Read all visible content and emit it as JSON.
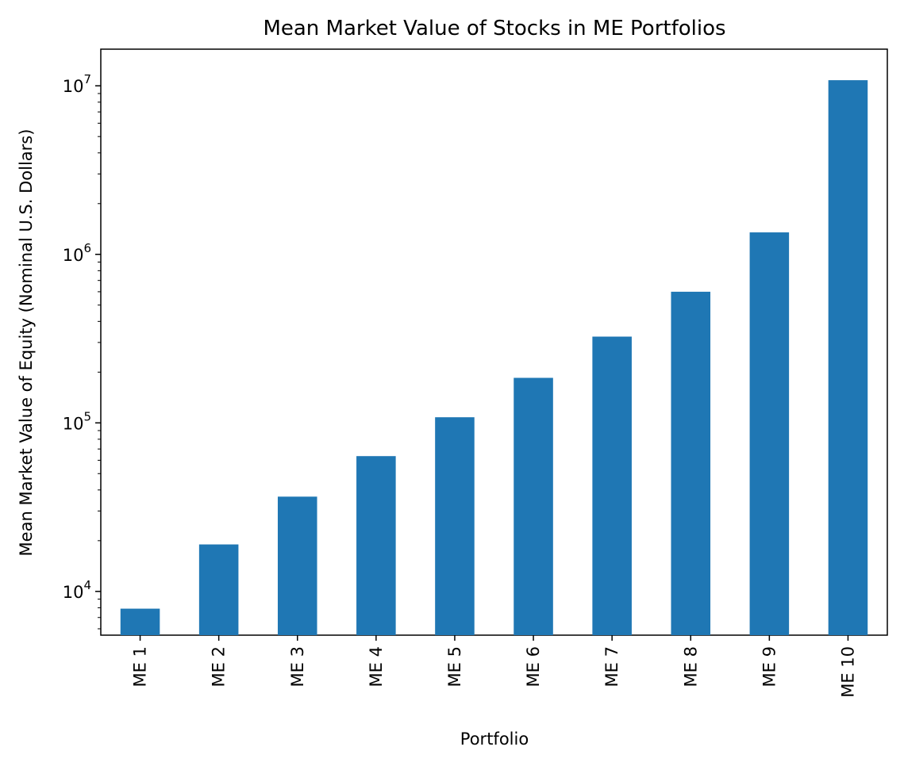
{
  "chart_data": {
    "type": "bar",
    "title": "Mean Market Value of Stocks in ME Portfolios",
    "xlabel": "Portfolio",
    "ylabel": "Mean Market Value of Equity (Nominal U.S. Dollars)",
    "yscale": "log",
    "ylim": [
      5500,
      16500000
    ],
    "yticks": [
      {
        "value": 10000,
        "base": "10",
        "exp": "4"
      },
      {
        "value": 100000,
        "base": "10",
        "exp": "5"
      },
      {
        "value": 1000000,
        "base": "10",
        "exp": "6"
      },
      {
        "value": 10000000,
        "base": "10",
        "exp": "7"
      }
    ],
    "categories": [
      "ME 1",
      "ME 2",
      "ME 3",
      "ME 4",
      "ME 5",
      "ME 6",
      "ME 7",
      "ME 8",
      "ME 9",
      "ME 10"
    ],
    "values": [
      7900,
      19000,
      36500,
      63500,
      108000,
      185000,
      325000,
      600000,
      1350000,
      10800000
    ],
    "bar_color": "#1f77b4",
    "grid": false,
    "legend": "none"
  }
}
